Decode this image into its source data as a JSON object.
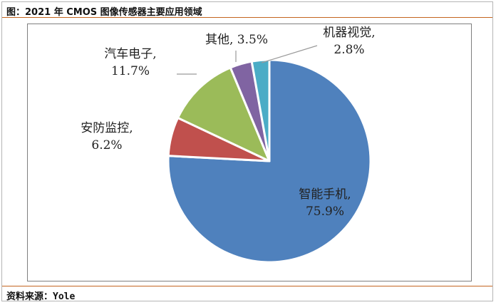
{
  "header": {
    "title": "图：2021 年 CMOS 图像传感器主要应用领域"
  },
  "footer": {
    "source": "资料来源：Yole"
  },
  "chart_data": {
    "type": "pie",
    "title": "",
    "start_angle_deg": 0,
    "direction": "clockwise",
    "slices": [
      {
        "name": "智能手机",
        "value": 75.9,
        "value_label": "75.9%",
        "color": "#4f81bd"
      },
      {
        "name": "安防监控",
        "value": 6.2,
        "value_label": "6.2%",
        "color": "#c0504d"
      },
      {
        "name": "汽车电子",
        "value": 11.7,
        "value_label": "11.7%",
        "color": "#9bbb59"
      },
      {
        "name": "其他",
        "value": 3.5,
        "value_label": "3.5%",
        "color": "#8064a2"
      },
      {
        "name": "机器视觉",
        "value": 2.8,
        "value_label": "2.8%",
        "color": "#4bacc6"
      }
    ]
  }
}
